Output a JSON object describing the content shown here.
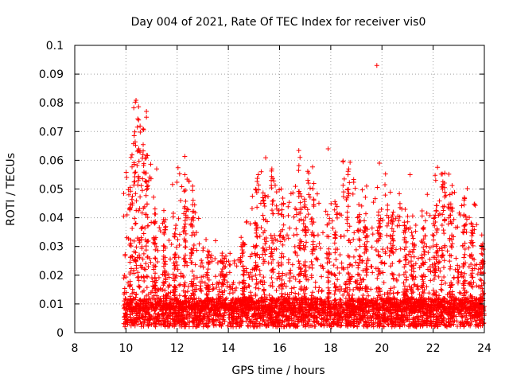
{
  "chart_data": {
    "type": "scatter",
    "title": "Day 004 of 2021, Rate Of TEC Index for receiver vis0",
    "xlabel": "GPS time / hours",
    "ylabel": "ROTI / TECUs",
    "xlim": [
      8,
      24
    ],
    "ylim": [
      0,
      0.1
    ],
    "xticks": [
      "8",
      "10",
      "12",
      "14",
      "16",
      "18",
      "20",
      "22",
      "24"
    ],
    "yticks": [
      "0",
      "0.01",
      "0.02",
      "0.03",
      "0.04",
      "0.05",
      "0.06",
      "0.07",
      "0.08",
      "0.09",
      "0.1"
    ],
    "grid": true,
    "marker": "+",
    "color": "#ff0000",
    "series": [
      {
        "name": "vis0",
        "data_start_hour": 9.9,
        "data_end_hour": 24,
        "baseline_range": [
          0.002,
          0.012
        ],
        "notable_points": [
          {
            "x": 19.8,
            "y": 0.093
          },
          {
            "x": 10.8,
            "y": 0.077
          },
          {
            "x": 10.8,
            "y": 0.075
          },
          {
            "x": 10.5,
            "y": 0.064
          },
          {
            "x": 10.2,
            "y": 0.061
          },
          {
            "x": 17.9,
            "y": 0.064
          },
          {
            "x": 16.8,
            "y": 0.061
          },
          {
            "x": 19.9,
            "y": 0.059
          },
          {
            "x": 15.7,
            "y": 0.057
          },
          {
            "x": 18.7,
            "y": 0.057
          },
          {
            "x": 11.2,
            "y": 0.057
          },
          {
            "x": 12.3,
            "y": 0.055
          },
          {
            "x": 21.1,
            "y": 0.055
          },
          {
            "x": 22.1,
            "y": 0.053
          },
          {
            "x": 19.4,
            "y": 0.051
          },
          {
            "x": 22.7,
            "y": 0.043
          },
          {
            "x": 23.2,
            "y": 0.041
          },
          {
            "x": 13.5,
            "y": 0.032
          },
          {
            "x": 23.9,
            "y": 0.034
          }
        ]
      }
    ]
  }
}
